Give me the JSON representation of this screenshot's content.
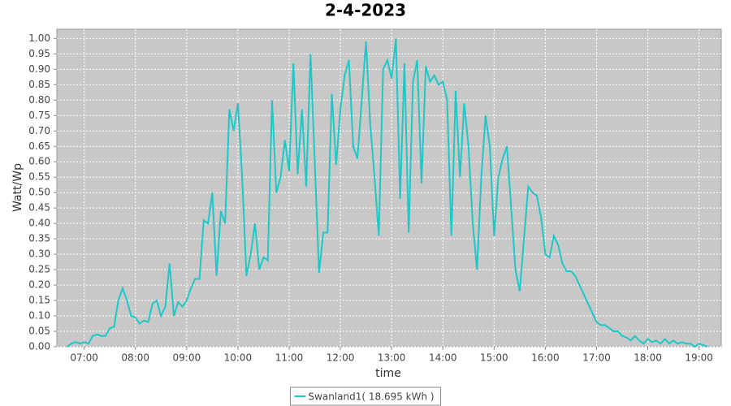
{
  "chart_data": {
    "type": "line",
    "title": "2-4-2023",
    "x_label": "time",
    "y_label": "Watt/Wp",
    "x": [
      "06:40",
      "06:45",
      "06:50",
      "06:55",
      "07:00",
      "07:05",
      "07:10",
      "07:15",
      "07:20",
      "07:25",
      "07:30",
      "07:35",
      "07:40",
      "07:45",
      "07:50",
      "07:55",
      "08:00",
      "08:05",
      "08:10",
      "08:15",
      "08:20",
      "08:25",
      "08:30",
      "08:35",
      "08:40",
      "08:45",
      "08:50",
      "08:55",
      "09:00",
      "09:05",
      "09:10",
      "09:15",
      "09:20",
      "09:25",
      "09:30",
      "09:35",
      "09:40",
      "09:45",
      "09:50",
      "09:55",
      "10:00",
      "10:05",
      "10:10",
      "10:15",
      "10:20",
      "10:25",
      "10:30",
      "10:35",
      "10:40",
      "10:45",
      "10:50",
      "10:55",
      "11:00",
      "11:05",
      "11:10",
      "11:15",
      "11:20",
      "11:25",
      "11:30",
      "11:35",
      "11:40",
      "11:45",
      "11:50",
      "11:55",
      "12:00",
      "12:05",
      "12:10",
      "12:15",
      "12:20",
      "12:25",
      "12:30",
      "12:35",
      "12:40",
      "12:45",
      "12:50",
      "12:55",
      "13:00",
      "13:05",
      "13:10",
      "13:15",
      "13:20",
      "13:25",
      "13:30",
      "13:35",
      "13:40",
      "13:45",
      "13:50",
      "13:55",
      "14:00",
      "14:05",
      "14:10",
      "14:15",
      "14:20",
      "14:25",
      "14:30",
      "14:35",
      "14:40",
      "14:45",
      "14:50",
      "14:55",
      "15:00",
      "15:05",
      "15:10",
      "15:15",
      "15:20",
      "15:25",
      "15:30",
      "15:35",
      "15:40",
      "15:45",
      "15:50",
      "15:55",
      "16:00",
      "16:05",
      "16:10",
      "16:15",
      "16:20",
      "16:25",
      "16:30",
      "16:35",
      "16:40",
      "16:45",
      "16:50",
      "16:55",
      "17:00",
      "17:05",
      "17:10",
      "17:15",
      "17:20",
      "17:25",
      "17:30",
      "17:35",
      "17:40",
      "17:45",
      "17:50",
      "17:55",
      "18:00",
      "18:05",
      "18:10",
      "18:15",
      "18:20",
      "18:25",
      "18:30",
      "18:35",
      "18:40",
      "18:45",
      "18:50",
      "18:55",
      "19:00",
      "19:05",
      "19:10"
    ],
    "series": [
      {
        "name": "Swanland1( 18.695 kWh )",
        "color": "#1ec8c8",
        "values": [
          0,
          0.01,
          0.015,
          0.01,
          0.015,
          0.01,
          0.035,
          0.04,
          0.035,
          0.035,
          0.06,
          0.065,
          0.15,
          0.19,
          0.15,
          0.1,
          0.095,
          0.075,
          0.085,
          0.08,
          0.14,
          0.15,
          0.1,
          0.13,
          0.27,
          0.1,
          0.145,
          0.13,
          0.15,
          0.19,
          0.22,
          0.22,
          0.41,
          0.4,
          0.5,
          0.23,
          0.44,
          0.4,
          0.77,
          0.7,
          0.79,
          0.55,
          0.23,
          0.3,
          0.4,
          0.25,
          0.29,
          0.28,
          0.8,
          0.5,
          0.55,
          0.67,
          0.57,
          0.92,
          0.56,
          0.77,
          0.52,
          0.95,
          0.6,
          0.24,
          0.37,
          0.37,
          0.82,
          0.59,
          0.77,
          0.88,
          0.93,
          0.65,
          0.61,
          0.8,
          0.99,
          0.72,
          0.55,
          0.36,
          0.9,
          0.93,
          0.87,
          1.0,
          0.48,
          0.92,
          0.37,
          0.86,
          0.93,
          0.53,
          0.91,
          0.86,
          0.88,
          0.85,
          0.86,
          0.8,
          0.36,
          0.83,
          0.55,
          0.79,
          0.65,
          0.4,
          0.25,
          0.55,
          0.75,
          0.65,
          0.36,
          0.55,
          0.61,
          0.65,
          0.45,
          0.25,
          0.18,
          0.35,
          0.52,
          0.5,
          0.49,
          0.42,
          0.3,
          0.29,
          0.36,
          0.33,
          0.27,
          0.245,
          0.245,
          0.23,
          0.2,
          0.17,
          0.14,
          0.11,
          0.08,
          0.07,
          0.07,
          0.06,
          0.05,
          0.05,
          0.035,
          0.03,
          0.02,
          0.035,
          0.02,
          0.01,
          0.025,
          0.015,
          0.02,
          0.01,
          0.025,
          0.01,
          0.02,
          0.01,
          0.015,
          0.01,
          0.01,
          0,
          0.01,
          0.005,
          0
        ]
      }
    ],
    "xlim": [
      "06:28",
      "19:26"
    ],
    "xticks": [
      "07:00",
      "08:00",
      "09:00",
      "10:00",
      "11:00",
      "12:00",
      "13:00",
      "14:00",
      "15:00",
      "16:00",
      "17:00",
      "18:00",
      "19:00"
    ],
    "ylim": [
      0,
      1.03
    ],
    "yticks": [
      {
        "value": 0,
        "label": "0.00"
      },
      {
        "value": 0.05,
        "label": "0.05"
      },
      {
        "value": 0.1,
        "label": "0.10"
      },
      {
        "value": 0.15,
        "label": "0.15"
      },
      {
        "value": 0.2,
        "label": "0.20"
      },
      {
        "value": 0.25,
        "label": "0.25"
      },
      {
        "value": 0.3,
        "label": "0.30"
      },
      {
        "value": 0.35,
        "label": "0.35"
      },
      {
        "value": 0.4,
        "label": "0.40"
      },
      {
        "value": 0.45,
        "label": "0.45"
      },
      {
        "value": 0.5,
        "label": "0.50"
      },
      {
        "value": 0.55,
        "label": "0.55"
      },
      {
        "value": 0.6,
        "label": "0.60"
      },
      {
        "value": 0.65,
        "label": "0.65"
      },
      {
        "value": 0.7,
        "label": "0.70"
      },
      {
        "value": 0.75,
        "label": "0.75"
      },
      {
        "value": 0.8,
        "label": "0.80"
      },
      {
        "value": 0.85,
        "label": "0.85"
      },
      {
        "value": 0.9,
        "label": "0.90"
      },
      {
        "value": 0.95,
        "label": "0.95"
      },
      {
        "value": 1.0,
        "label": "1.00"
      }
    ],
    "grid": true,
    "legend": "bottom"
  }
}
